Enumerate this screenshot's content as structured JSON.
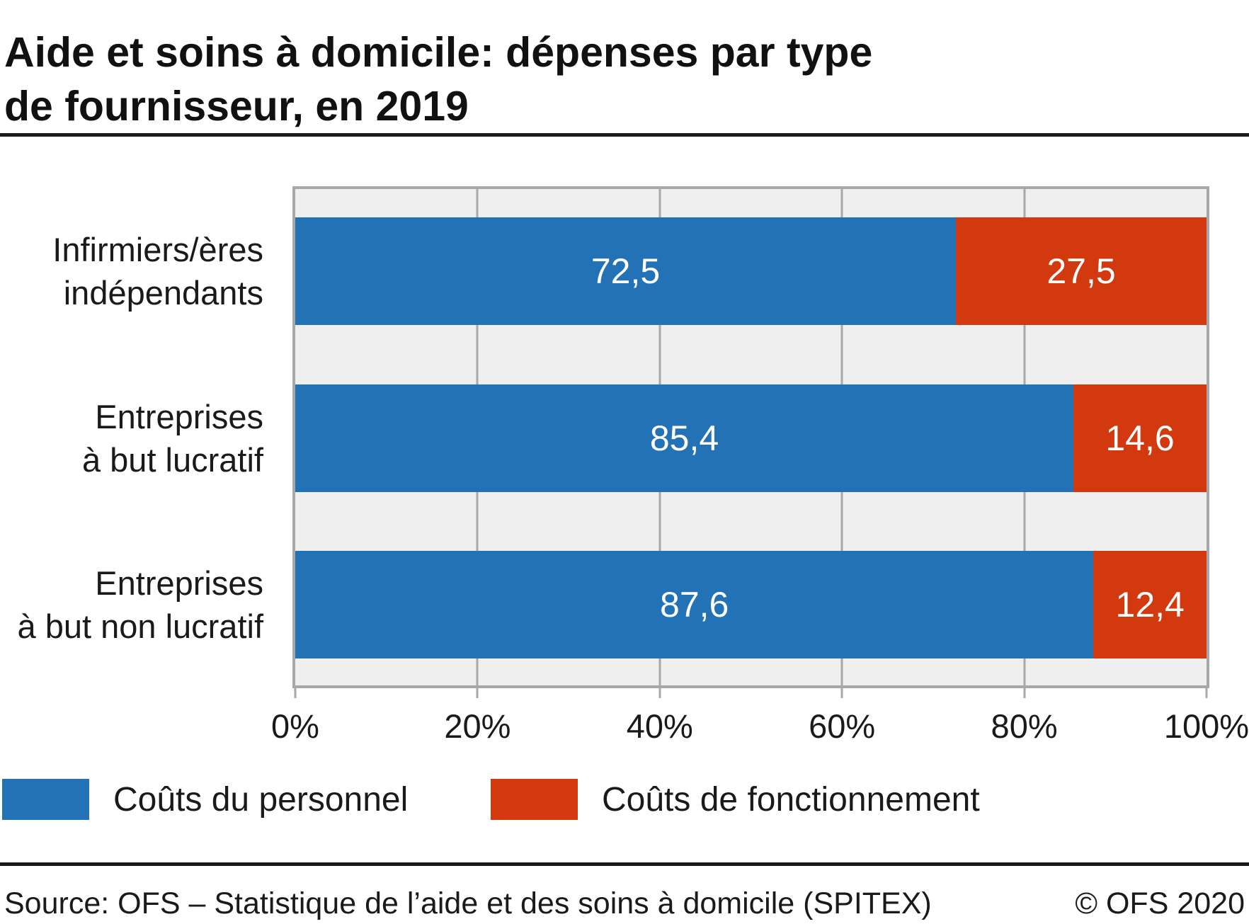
{
  "header": {
    "title": "Aide et soins à domicile: dépenses par type\nde fournisseur, en 2019"
  },
  "chart_data": {
    "type": "bar",
    "orientation": "horizontal",
    "stacked": true,
    "title": "Aide et soins à domicile: dépenses par type de fournisseur, en 2019",
    "categories": [
      "Infirmiers/ères\nindépendants",
      "Entreprises\nà but lucratif",
      "Entreprises\nà but non lucratif"
    ],
    "series": [
      {
        "name": "Coûts du personnel",
        "color": "#2272B5",
        "values": [
          72.5,
          85.4,
          87.6
        ],
        "value_labels": [
          "72,5",
          "85,4",
          "87,6"
        ]
      },
      {
        "name": "Coûts de fonctionnement",
        "color": "#D2390E",
        "values": [
          27.5,
          14.6,
          12.4
        ],
        "value_labels": [
          "27,5",
          "14,6",
          "12,4"
        ]
      }
    ],
    "x_ticks": [
      "0%",
      "20%",
      "40%",
      "60%",
      "80%",
      "100%"
    ],
    "xlim": [
      0,
      100
    ],
    "xlabel": "",
    "ylabel": "",
    "grid": "vertical",
    "plot_background": "#efefef",
    "grid_color": "#a8a8a8",
    "value_label_color": "#ffffff",
    "legend_position": "bottom"
  },
  "legend": {
    "items": [
      {
        "label": "Coûts du personnel",
        "color": "#2272B5"
      },
      {
        "label": "Coûts de fonctionnement",
        "color": "#D2390E"
      }
    ]
  },
  "footer": {
    "source": "Source: OFS – Statistique de l’aide et des soins à domicile (SPITEX)",
    "copyright": "© OFS 2020"
  }
}
